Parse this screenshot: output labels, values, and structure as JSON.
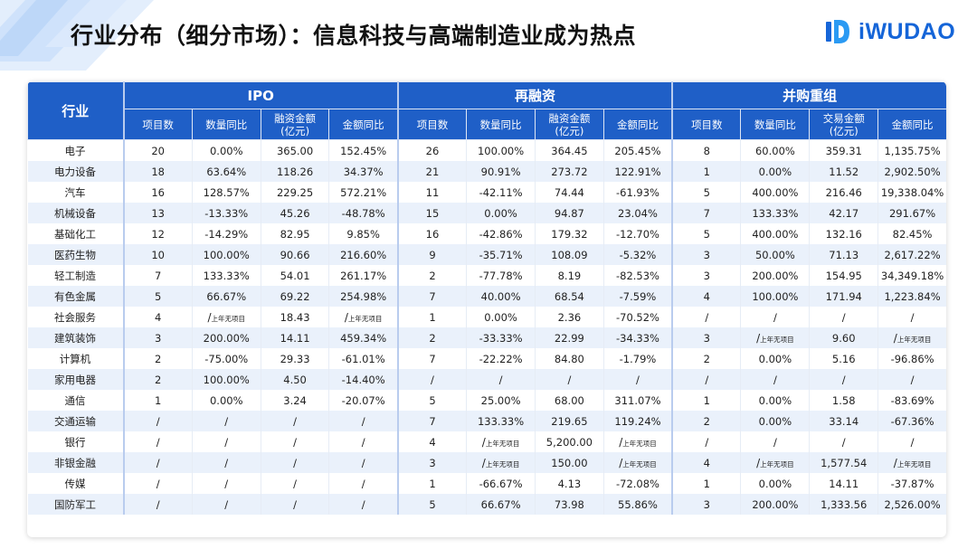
{
  "header": {
    "title": "行业分布（细分市场）：信息科技与高端制造业成为热点",
    "brand": "iWUDAO",
    "brand_color": "#1565d8"
  },
  "table": {
    "industry_header": "行业",
    "groups": [
      "IPO",
      "再融资",
      "并购重组"
    ],
    "subheaders": [
      [
        "项目数",
        "数量同比",
        "融资金额\n(亿元)",
        "金额同比"
      ],
      [
        "项目数",
        "数量同比",
        "融资金额\n(亿元)",
        "金额同比"
      ],
      [
        "项目数",
        "数量同比",
        "交易金额\n(亿元)",
        "金额同比"
      ]
    ],
    "note": "上年无项目",
    "rows": [
      [
        "电子",
        "20",
        "0.00%",
        "365.00",
        "152.45%",
        "26",
        "100.00%",
        "364.45",
        "205.45%",
        "8",
        "60.00%",
        "359.31",
        "1,135.75%"
      ],
      [
        "电力设备",
        "18",
        "63.64%",
        "118.26",
        "34.37%",
        "21",
        "90.91%",
        "273.72",
        "122.91%",
        "1",
        "0.00%",
        "11.52",
        "2,902.50%"
      ],
      [
        "汽车",
        "16",
        "128.57%",
        "229.25",
        "572.21%",
        "11",
        "-42.11%",
        "74.44",
        "-61.93%",
        "5",
        "400.00%",
        "216.46",
        "19,338.04%"
      ],
      [
        "机械设备",
        "13",
        "-13.33%",
        "45.26",
        "-48.78%",
        "15",
        "0.00%",
        "94.87",
        "23.04%",
        "7",
        "133.33%",
        "42.17",
        "291.67%"
      ],
      [
        "基础化工",
        "12",
        "-14.29%",
        "82.95",
        "9.85%",
        "16",
        "-42.86%",
        "179.32",
        "-12.70%",
        "5",
        "400.00%",
        "132.16",
        "82.45%"
      ],
      [
        "医药生物",
        "10",
        "100.00%",
        "90.66",
        "216.60%",
        "9",
        "-35.71%",
        "108.09",
        "-5.32%",
        "3",
        "50.00%",
        "71.13",
        "2,617.22%"
      ],
      [
        "轻工制造",
        "7",
        "133.33%",
        "54.01",
        "261.17%",
        "2",
        "-77.78%",
        "8.19",
        "-82.53%",
        "3",
        "200.00%",
        "154.95",
        "34,349.18%"
      ],
      [
        "有色金属",
        "5",
        "66.67%",
        "69.22",
        "254.98%",
        "7",
        "40.00%",
        "68.54",
        "-7.59%",
        "4",
        "100.00%",
        "171.94",
        "1,223.84%"
      ],
      [
        "社会服务",
        "4",
        "/上年无项目",
        "18.43",
        "/上年无项目",
        "1",
        "0.00%",
        "2.36",
        "-70.52%",
        "/",
        "/",
        "/",
        "/"
      ],
      [
        "建筑装饰",
        "3",
        "200.00%",
        "14.11",
        "459.34%",
        "2",
        "-33.33%",
        "22.99",
        "-34.33%",
        "3",
        "/上年无项目",
        "9.60",
        "/上年无项目"
      ],
      [
        "计算机",
        "2",
        "-75.00%",
        "29.33",
        "-61.01%",
        "7",
        "-22.22%",
        "84.80",
        "-1.79%",
        "2",
        "0.00%",
        "5.16",
        "-96.86%"
      ],
      [
        "家用电器",
        "2",
        "100.00%",
        "4.50",
        "-14.40%",
        "/",
        "/",
        "/",
        "/",
        "/",
        "/",
        "/",
        "/"
      ],
      [
        "通信",
        "1",
        "0.00%",
        "3.24",
        "-20.07%",
        "5",
        "25.00%",
        "68.00",
        "311.07%",
        "1",
        "0.00%",
        "1.58",
        "-83.69%"
      ],
      [
        "交通运输",
        "/",
        "/",
        "/",
        "/",
        "7",
        "133.33%",
        "219.65",
        "119.24%",
        "2",
        "0.00%",
        "33.14",
        "-67.36%"
      ],
      [
        "银行",
        "/",
        "/",
        "/",
        "/",
        "4",
        "/上年无项目",
        "5,200.00",
        "/上年无项目",
        "/",
        "/",
        "/",
        "/"
      ],
      [
        "非银金融",
        "/",
        "/",
        "/",
        "/",
        "3",
        "/上年无项目",
        "150.00",
        "/上年无项目",
        "4",
        "/上年无项目",
        "1,577.54",
        "/上年无项目"
      ],
      [
        "传媒",
        "/",
        "/",
        "/",
        "/",
        "1",
        "-66.67%",
        "4.13",
        "-72.08%",
        "1",
        "0.00%",
        "14.11",
        "-37.87%"
      ],
      [
        "国防军工",
        "/",
        "/",
        "/",
        "/",
        "5",
        "66.67%",
        "73.98",
        "55.86%",
        "3",
        "200.00%",
        "1,333.56",
        "2,526.00%"
      ]
    ]
  },
  "style": {
    "header_bg": "#1f5fc7",
    "stripe_bg": "#eaf1fb"
  }
}
